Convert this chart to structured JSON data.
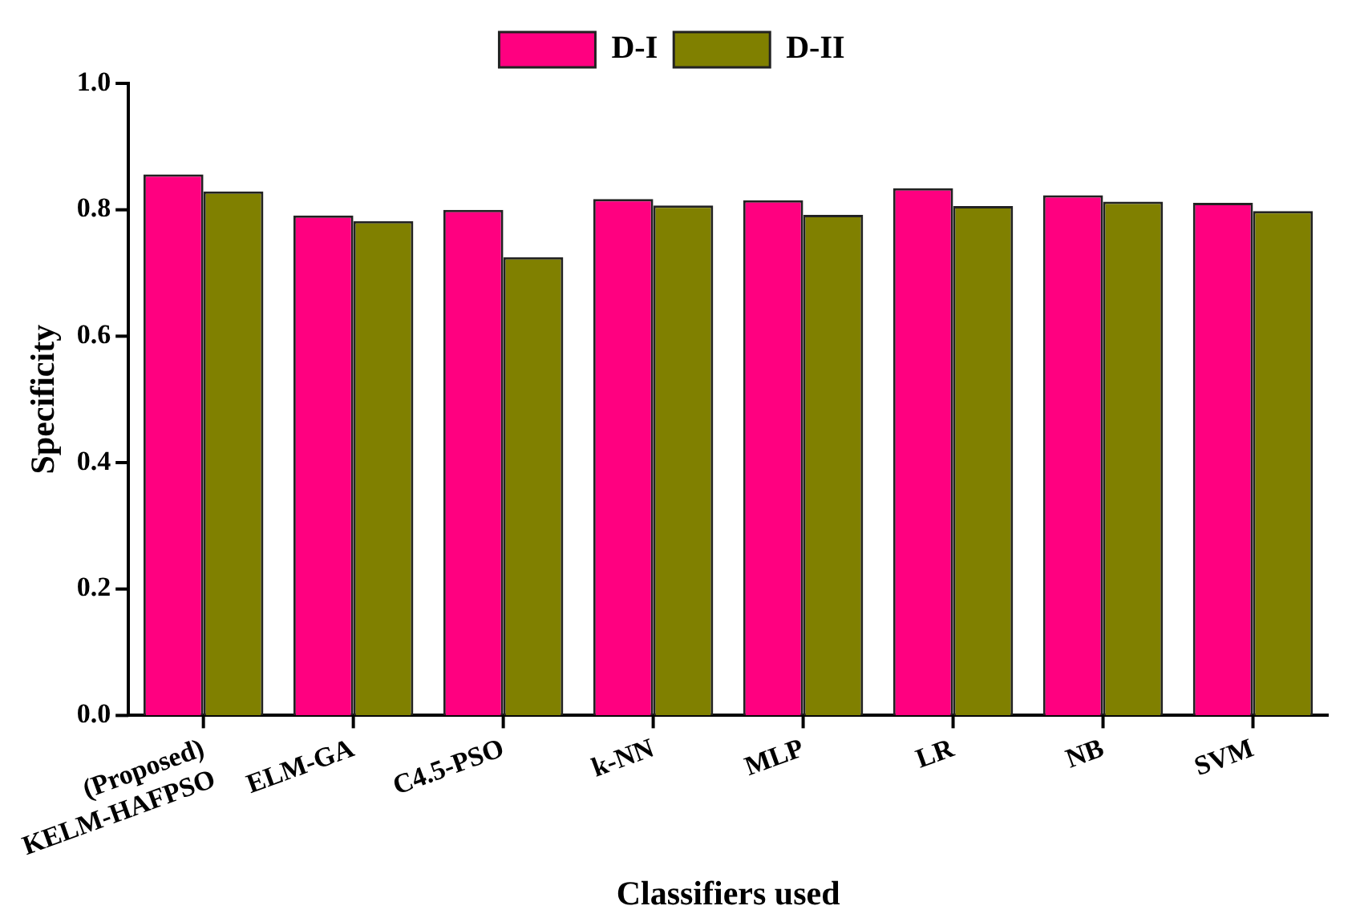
{
  "chart_data": {
    "type": "bar",
    "xlabel": "Classifiers used",
    "ylabel": "Specificity",
    "categories": [
      "(Proposed)\nKELM-HAFPSO",
      "ELM-GA",
      "C4.5-PSO",
      "k-NN",
      "MLP",
      "LR",
      "NB",
      "SVM"
    ],
    "series": [
      {
        "name": "D-I",
        "color": "#ff0080",
        "values": [
          0.856,
          0.791,
          0.8,
          0.817,
          0.815,
          0.834,
          0.823,
          0.811
        ]
      },
      {
        "name": "D-II",
        "color": "#808000",
        "values": [
          0.829,
          0.782,
          0.725,
          0.807,
          0.792,
          0.806,
          0.813,
          0.798
        ]
      }
    ],
    "ylim": [
      0,
      1
    ],
    "yticks": [
      {
        "value": 0,
        "label": "0.0"
      },
      0.2,
      0.4,
      0.6,
      0.8,
      {
        "value": 1,
        "label": "1.0"
      }
    ],
    "grid": false,
    "legend": "top"
  }
}
